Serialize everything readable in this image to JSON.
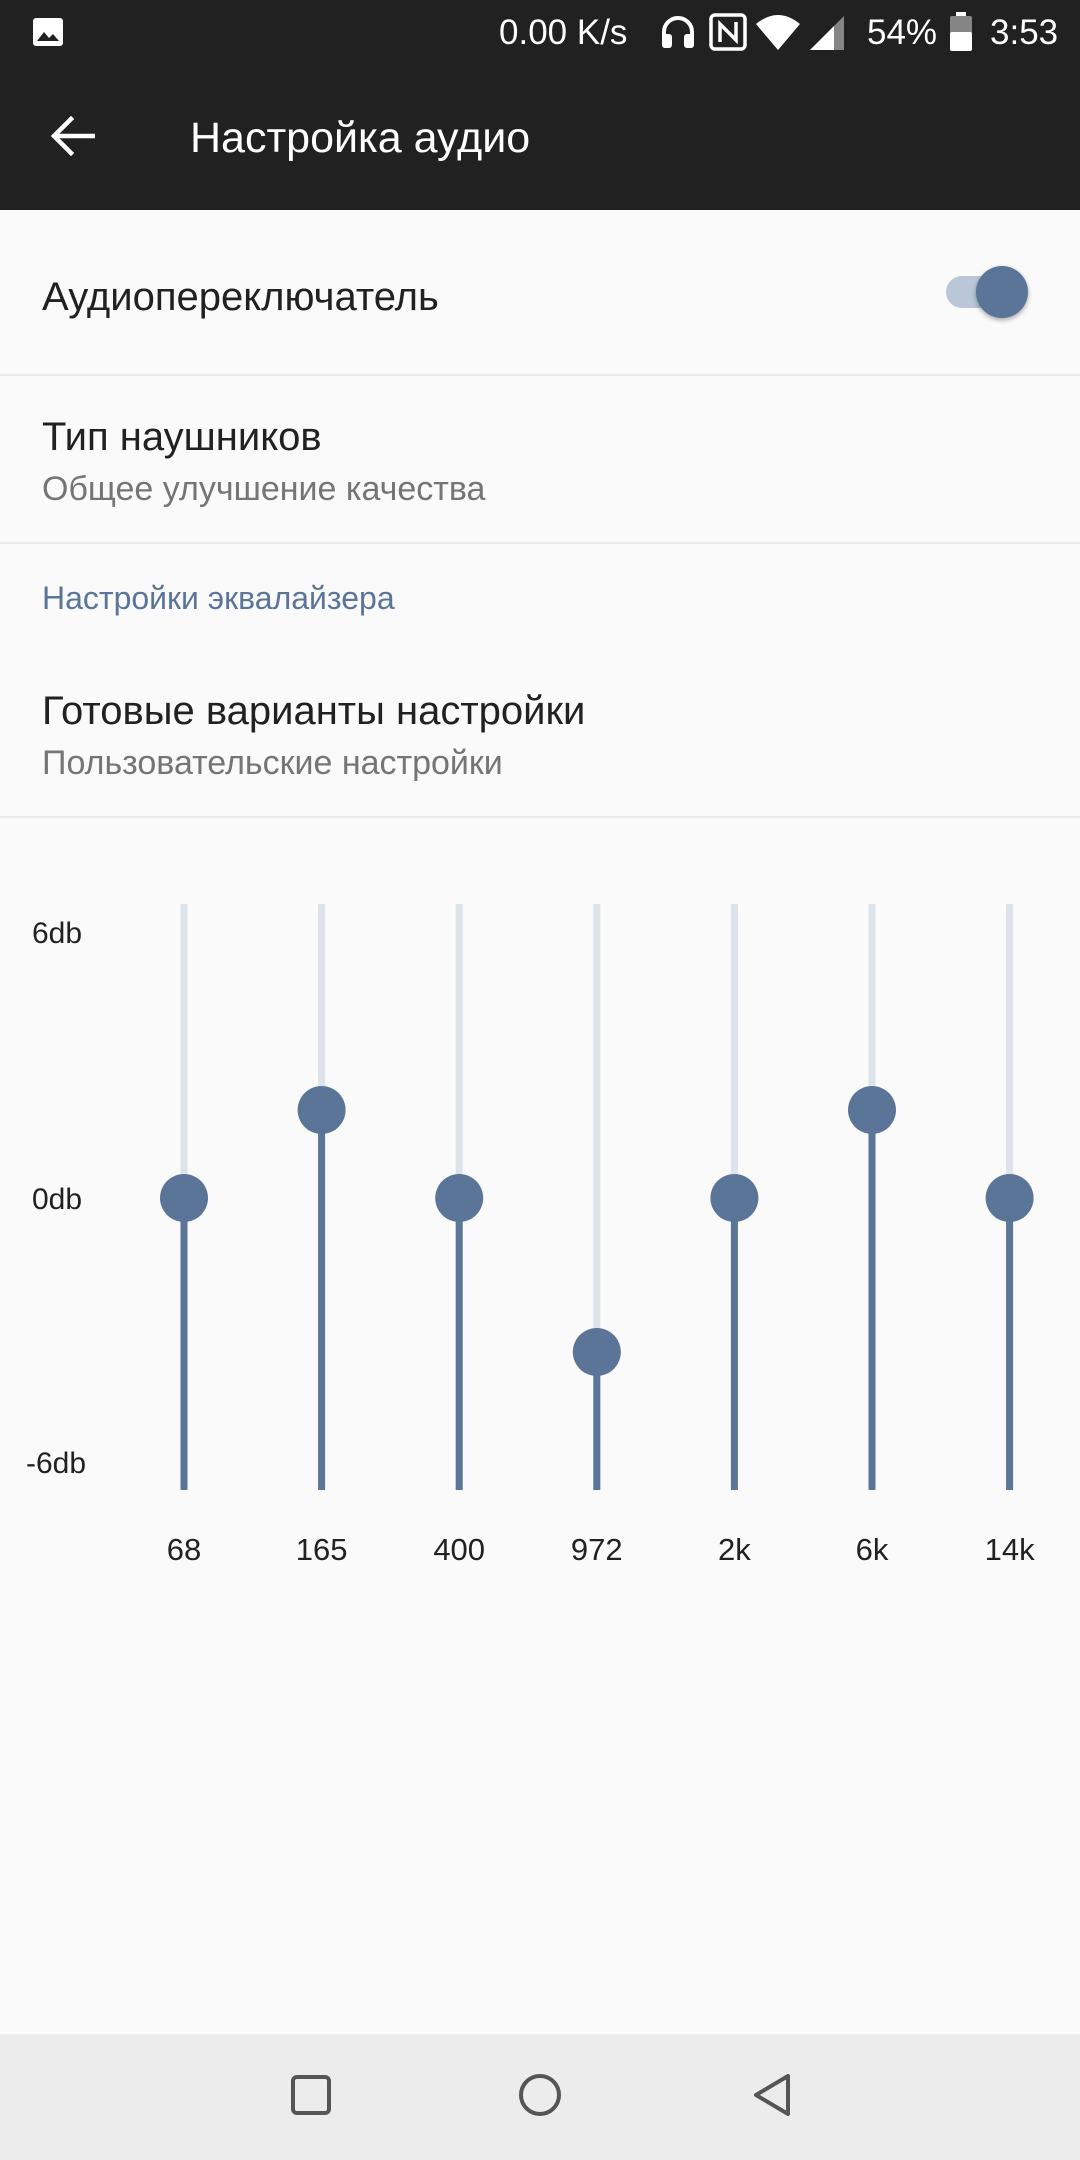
{
  "status_bar": {
    "net_speed": "0.00 K/s",
    "battery_percent": "54%",
    "time": "3:53",
    "icons": [
      "gallery-icon",
      "headphones-icon",
      "nfc-icon",
      "wifi-icon",
      "signal-icon",
      "battery-icon"
    ]
  },
  "app_bar": {
    "title": "Настройка аудио",
    "back_icon": "arrow-left-icon"
  },
  "audio_switch": {
    "label": "Аудиопереключатель",
    "enabled": true
  },
  "headphone_type": {
    "label": "Тип наушников",
    "summary": "Общее улучшение качества"
  },
  "equalizer_section": {
    "header": "Настройки эквалайзера"
  },
  "presets": {
    "label": "Готовые варианты настройки",
    "summary": "Пользовательские настройки"
  },
  "equalizer": {
    "db_labels": {
      "max": "6db",
      "mid": "0db",
      "min": "-6db"
    },
    "range_db": [
      -6,
      6
    ],
    "bands": [
      {
        "freq": "68",
        "gain_db": 0
      },
      {
        "freq": "165",
        "gain_db": 2
      },
      {
        "freq": "400",
        "gain_db": 0
      },
      {
        "freq": "972",
        "gain_db": -3.5
      },
      {
        "freq": "2k",
        "gain_db": 0
      },
      {
        "freq": "6k",
        "gain_db": 2
      },
      {
        "freq": "14k",
        "gain_db": 0
      }
    ],
    "colors": {
      "active": "#5a7598",
      "inactive": "#dce3eb"
    }
  },
  "nav_bar": {
    "icons": [
      "recents-square-icon",
      "home-circle-icon",
      "back-triangle-icon"
    ]
  }
}
